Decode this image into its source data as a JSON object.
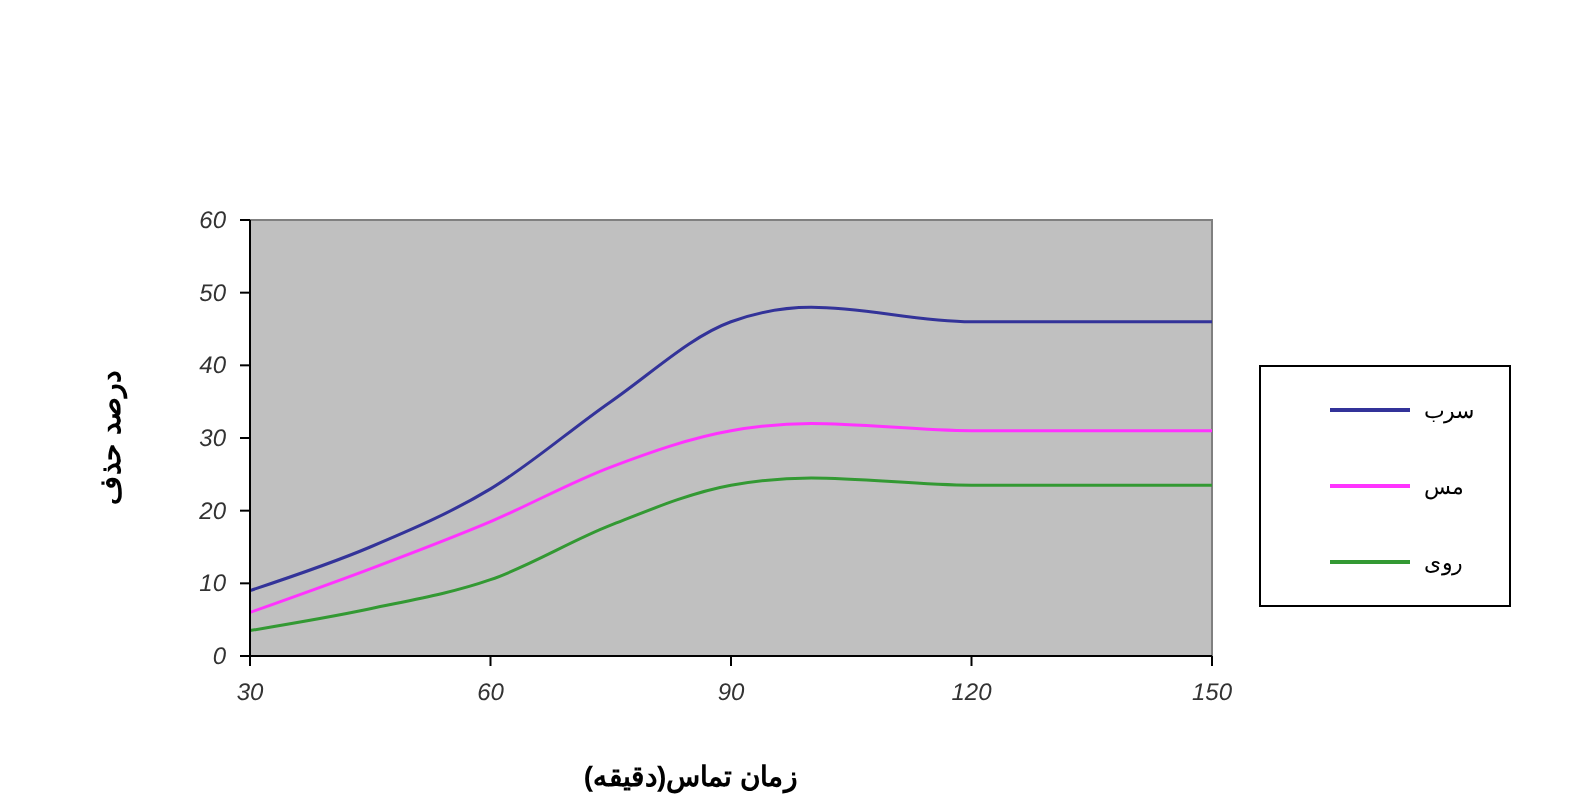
{
  "chart_data": {
    "type": "line",
    "xlabel": "زمان تماس(دقیقه)",
    "ylabel": "درصد حذف",
    "x": [
      30,
      45,
      60,
      75,
      90,
      100,
      120,
      150
    ],
    "series": [
      {
        "name": "سرب",
        "color": "#333399",
        "values": [
          9,
          15,
          23,
          35,
          46,
          48,
          46,
          46
        ]
      },
      {
        "name": "مس",
        "color": "#ff33ff",
        "values": [
          6,
          12,
          18.5,
          26,
          31,
          32,
          31,
          31
        ]
      },
      {
        "name": "روی",
        "color": "#339933",
        "values": [
          3.5,
          6.5,
          10.5,
          18,
          23.5,
          24.5,
          23.5,
          23.5
        ]
      }
    ],
    "xlim": [
      30,
      150
    ],
    "xticks": [
      30,
      60,
      90,
      120,
      150
    ],
    "ylim": [
      0,
      60
    ],
    "yticks": [
      0,
      10,
      20,
      30,
      40,
      50,
      60
    ],
    "grid": false,
    "legend": "right",
    "marker": "none",
    "line_style": "solid"
  }
}
